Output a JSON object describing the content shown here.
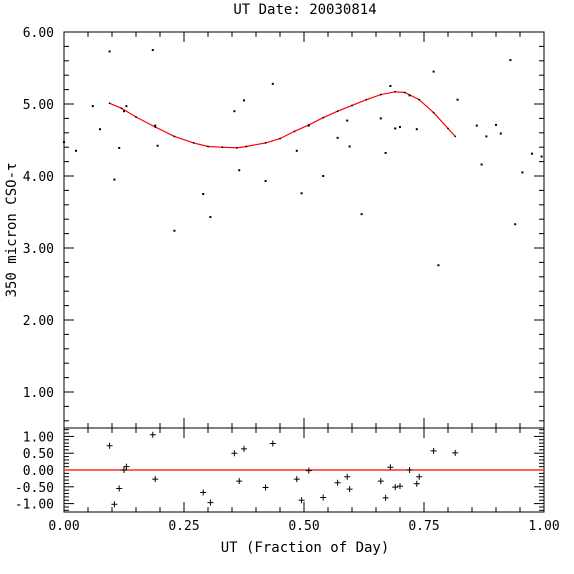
{
  "chart_data": [
    {
      "type": "scatter",
      "title": "UT Date: 20030814",
      "xlabel": "",
      "ylabel": "350 micron CSO-τ",
      "xlim": [
        0.0,
        1.0
      ],
      "ylim": [
        0.5,
        6.0
      ],
      "yticks": [
        "1.00",
        "2.00",
        "3.00",
        "4.00",
        "5.00",
        "6.00"
      ],
      "grid": false,
      "series": [
        {
          "kind": "points",
          "color": "#000000",
          "points": [
            [
              0.0,
              4.47
            ],
            [
              0.025,
              4.35
            ],
            [
              0.06,
              4.97
            ],
            [
              0.075,
              4.65
            ],
            [
              0.095,
              5.73
            ],
            [
              0.105,
              3.95
            ],
            [
              0.115,
              4.39
            ],
            [
              0.125,
              4.9
            ],
            [
              0.13,
              4.97
            ],
            [
              0.185,
              5.75
            ],
            [
              0.19,
              4.7
            ],
            [
              0.195,
              4.42
            ],
            [
              0.23,
              3.24
            ],
            [
              0.29,
              3.75
            ],
            [
              0.305,
              3.43
            ],
            [
              0.355,
              4.9
            ],
            [
              0.365,
              4.08
            ],
            [
              0.375,
              5.05
            ],
            [
              0.42,
              3.93
            ],
            [
              0.435,
              5.28
            ],
            [
              0.485,
              4.35
            ],
            [
              0.495,
              3.76
            ],
            [
              0.51,
              4.7
            ],
            [
              0.54,
              4.0
            ],
            [
              0.57,
              4.53
            ],
            [
              0.59,
              4.77
            ],
            [
              0.595,
              4.41
            ],
            [
              0.62,
              3.47
            ],
            [
              0.66,
              4.8
            ],
            [
              0.67,
              4.32
            ],
            [
              0.68,
              5.25
            ],
            [
              0.69,
              4.66
            ],
            [
              0.7,
              4.68
            ],
            [
              0.72,
              5.12
            ],
            [
              0.735,
              4.65
            ],
            [
              0.77,
              5.45
            ],
            [
              0.78,
              2.76
            ],
            [
              0.82,
              5.06
            ],
            [
              0.86,
              4.7
            ],
            [
              0.87,
              4.16
            ],
            [
              0.88,
              4.55
            ],
            [
              0.9,
              4.71
            ],
            [
              0.91,
              4.59
            ],
            [
              0.93,
              5.61
            ],
            [
              0.94,
              3.33
            ],
            [
              0.955,
              4.05
            ],
            [
              0.975,
              4.31
            ],
            [
              0.995,
              4.27
            ]
          ]
        },
        {
          "kind": "fit",
          "color": "#ff0000",
          "points": [
            [
              0.095,
              5.01
            ],
            [
              0.12,
              4.94
            ],
            [
              0.15,
              4.82
            ],
            [
              0.19,
              4.68
            ],
            [
              0.23,
              4.55
            ],
            [
              0.27,
              4.46
            ],
            [
              0.3,
              4.41
            ],
            [
              0.33,
              4.4
            ],
            [
              0.36,
              4.39
            ],
            [
              0.38,
              4.41
            ],
            [
              0.42,
              4.46
            ],
            [
              0.45,
              4.52
            ],
            [
              0.48,
              4.62
            ],
            [
              0.51,
              4.71
            ],
            [
              0.54,
              4.81
            ],
            [
              0.57,
              4.9
            ],
            [
              0.6,
              4.98
            ],
            [
              0.63,
              5.06
            ],
            [
              0.66,
              5.13
            ],
            [
              0.69,
              5.17
            ],
            [
              0.71,
              5.16
            ],
            [
              0.74,
              5.06
            ],
            [
              0.77,
              4.88
            ],
            [
              0.8,
              4.66
            ],
            [
              0.815,
              4.55
            ]
          ]
        }
      ]
    },
    {
      "type": "scatter",
      "title": "",
      "xlabel": "UT (Fraction of Day)",
      "ylabel": "",
      "xlim": [
        0.0,
        1.0
      ],
      "ylim": [
        -1.25,
        1.25
      ],
      "xticks": [
        "0.00",
        "0.25",
        "0.50",
        "0.75",
        "1.00"
      ],
      "yticks": [
        "1.00",
        "0.50",
        "0.00",
        "-0.50",
        "-1.00"
      ],
      "grid": false,
      "series": [
        {
          "kind": "residuals",
          "color": "#000000",
          "points": [
            [
              0.095,
              0.72
            ],
            [
              0.105,
              -1.02
            ],
            [
              0.115,
              -0.55
            ],
            [
              0.125,
              0.0
            ],
            [
              0.13,
              0.1
            ],
            [
              0.185,
              1.05
            ],
            [
              0.19,
              -0.27
            ],
            [
              0.29,
              -0.67
            ],
            [
              0.305,
              -0.97
            ],
            [
              0.355,
              0.5
            ],
            [
              0.365,
              -0.33
            ],
            [
              0.375,
              0.63
            ],
            [
              0.42,
              -0.52
            ],
            [
              0.435,
              0.79
            ],
            [
              0.485,
              -0.27
            ],
            [
              0.495,
              -0.9
            ],
            [
              0.51,
              -0.02
            ],
            [
              0.54,
              -0.82
            ],
            [
              0.57,
              -0.38
            ],
            [
              0.59,
              -0.2
            ],
            [
              0.595,
              -0.57
            ],
            [
              0.66,
              -0.33
            ],
            [
              0.67,
              -0.83
            ],
            [
              0.68,
              0.08
            ],
            [
              0.69,
              -0.51
            ],
            [
              0.7,
              -0.48
            ],
            [
              0.72,
              0.0
            ],
            [
              0.735,
              -0.41
            ],
            [
              0.74,
              -0.2
            ],
            [
              0.77,
              0.57
            ],
            [
              0.815,
              0.51
            ]
          ]
        },
        {
          "kind": "zero-line",
          "color": "#ff0000",
          "points": [
            [
              0.0,
              0.0
            ],
            [
              1.0,
              0.0
            ]
          ]
        }
      ]
    }
  ]
}
